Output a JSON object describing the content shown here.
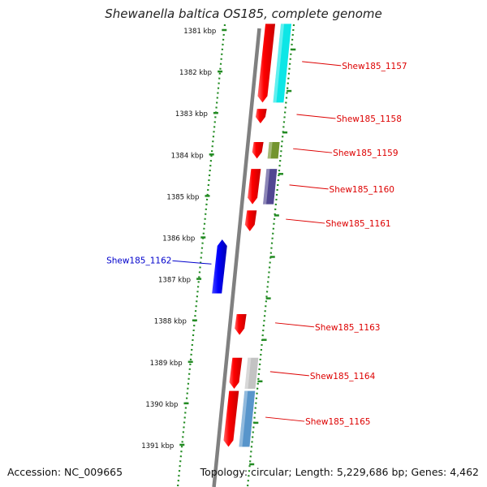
{
  "title": "Shewanella baltica OS185, complete genome",
  "footer": {
    "accession": "Accession: NC_009665",
    "topology": "Topology: circular; Length: 5,229,686 bp; Genes: 4,462"
  },
  "ticks": [
    {
      "label": "1381 kbp",
      "kbp": 1381
    },
    {
      "label": "1382 kbp",
      "kbp": 1382
    },
    {
      "label": "1383 kbp",
      "kbp": 1383
    },
    {
      "label": "1384 kbp",
      "kbp": 1384
    },
    {
      "label": "1385 kbp",
      "kbp": 1385
    },
    {
      "label": "1386 kbp",
      "kbp": 1386
    },
    {
      "label": "1387 kbp",
      "kbp": 1387
    },
    {
      "label": "1388 kbp",
      "kbp": 1388
    },
    {
      "label": "1389 kbp",
      "kbp": 1389
    },
    {
      "label": "1390 kbp",
      "kbp": 1390
    },
    {
      "label": "1391 kbp",
      "kbp": 1391
    }
  ],
  "genes": [
    {
      "label": "Shew185_1157",
      "kbp_start": 1380.85,
      "kbp_end": 1382.75,
      "strand": "forward",
      "color": "#ff0000",
      "partner_color": "#00e5e5"
    },
    {
      "label": "Shew185_1158",
      "kbp_start": 1382.9,
      "kbp_end": 1383.25,
      "strand": "forward",
      "color": "#ff0000",
      "partner_color": ""
    },
    {
      "label": "Shew185_1159",
      "kbp_start": 1383.7,
      "kbp_end": 1384.1,
      "strand": "forward",
      "color": "#ff0000",
      "partner_color": "#6b8e23"
    },
    {
      "label": "Shew185_1160",
      "kbp_start": 1384.35,
      "kbp_end": 1385.2,
      "strand": "forward",
      "color": "#ff0000",
      "partner_color": "#483d8b"
    },
    {
      "label": "Shew185_1161",
      "kbp_start": 1385.35,
      "kbp_end": 1385.85,
      "strand": "forward",
      "color": "#ff0000",
      "partner_color": ""
    },
    {
      "label": "Shew185_1162",
      "kbp_start": 1386.05,
      "kbp_end": 1387.35,
      "strand": "reverse",
      "color": "#0000ff",
      "partner_color": ""
    },
    {
      "label": "Shew185_1163",
      "kbp_start": 1387.85,
      "kbp_end": 1388.35,
      "strand": "forward",
      "color": "#ff0000",
      "partner_color": ""
    },
    {
      "label": "Shew185_1164",
      "kbp_start": 1388.9,
      "kbp_end": 1389.65,
      "strand": "forward",
      "color": "#ff0000",
      "partner_color": "#c0c0c0"
    },
    {
      "label": "Shew185_1165",
      "kbp_start": 1389.7,
      "kbp_end": 1391.05,
      "strand": "forward",
      "color": "#ff0000",
      "partner_color": "#4f8fc8"
    }
  ],
  "colors": {
    "backbone": "#808080",
    "dotted_track": "#228b22",
    "forward_label": "#dd0000",
    "reverse_label": "#0000cc"
  }
}
